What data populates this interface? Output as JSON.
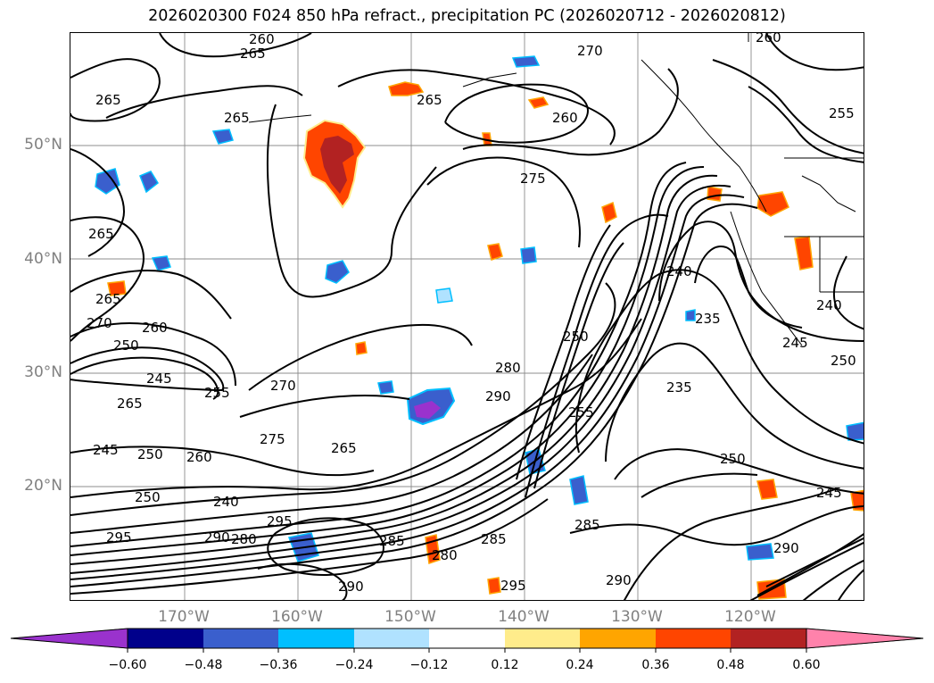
{
  "title": "2026020300 F024 850 hPa refract., precipitation PC (2026020712 - 2026020812)",
  "lat_labels": [
    "50°N",
    "40°N",
    "30°N",
    "20°N"
  ],
  "lon_labels": [
    "170°W",
    "160°W",
    "150°W",
    "140°W",
    "130°W",
    "120°W"
  ],
  "colorbar": {
    "ticks": [
      "−0.60",
      "−0.48",
      "−0.36",
      "−0.24",
      "−0.12",
      "0.12",
      "0.24",
      "0.36",
      "0.48",
      "0.60"
    ],
    "colors": [
      "#9a32cd",
      "#00008b",
      "#3a5fcd",
      "#00bfff",
      "#b0e2ff",
      "#ffffff",
      "#ffec8b",
      "#ffa500",
      "#ff4500",
      "#b22222",
      "#ff82ab"
    ]
  },
  "contour_labels": [
    "260",
    "265",
    "265",
    "265",
    "270",
    "265",
    "260",
    "275",
    "265",
    "265",
    "270",
    "260",
    "250",
    "245",
    "255",
    "265",
    "270",
    "275",
    "245",
    "250",
    "260",
    "265",
    "250",
    "240",
    "295",
    "295",
    "290",
    "280",
    "285",
    "280",
    "295",
    "290",
    "285",
    "290",
    "280",
    "250",
    "255",
    "285",
    "240",
    "235",
    "235",
    "250",
    "245",
    "240",
    "245",
    "250",
    "290",
    "290",
    "255",
    "260"
  ],
  "contour_label_colors": {
    "line": "#000000"
  },
  "precip_colors": {
    "pos_light": "#ffec8b",
    "pos_mid": "#ffa500",
    "pos_strong": "#ff4500",
    "pos_heavy": "#b22222",
    "neg_light": "#b0e2ff",
    "neg_mid": "#00bfff",
    "neg_strong": "#3a5fcd",
    "neg_heavy": "#00008b",
    "neg_extreme": "#9a32cd"
  }
}
